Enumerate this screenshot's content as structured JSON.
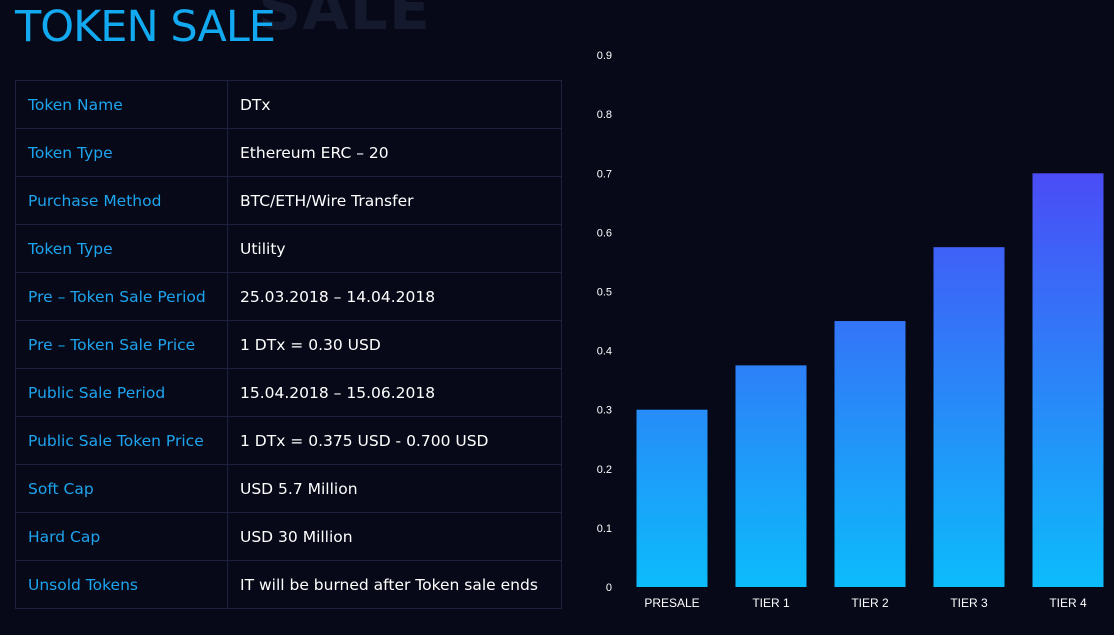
{
  "page": {
    "title": "TOKEN SALE",
    "background_word": "SALE"
  },
  "table": {
    "rows": [
      {
        "label": "Token Name",
        "value": "DTx"
      },
      {
        "label": "Token Type",
        "value": "Ethereum ERC – 20"
      },
      {
        "label": "Purchase Method",
        "value": "BTC/ETH/Wire Transfer"
      },
      {
        "label": "Token Type",
        "value": "Utility"
      },
      {
        "label": "Pre – Token Sale Period",
        "value": "25.03.2018 – 14.04.2018"
      },
      {
        "label": "Pre – Token Sale Price",
        "value": "1 DTx = 0.30 USD"
      },
      {
        "label": "Public Sale Period",
        "value": "15.04.2018 – 15.06.2018"
      },
      {
        "label": "Public Sale Token Price",
        "value": "1 DTx = 0.375 USD - 0.700 USD"
      },
      {
        "label": "Soft Cap",
        "value": "USD 5.7 Million"
      },
      {
        "label": "Hard Cap",
        "value": "USD 30 Million"
      },
      {
        "label": "Unsold Tokens",
        "value": "IT will be burned after Token sale ends"
      }
    ]
  },
  "chart_data": {
    "type": "bar",
    "title": "",
    "xlabel": "",
    "ylabel": "",
    "categories": [
      "PRESALE",
      "TIER 1",
      "TIER 2",
      "TIER 3",
      "TIER 4"
    ],
    "values": [
      0.3,
      0.375,
      0.45,
      0.575,
      0.7
    ],
    "ylim": [
      0,
      1
    ],
    "yticks": [
      "0",
      "0.1",
      "0.2",
      "0.3",
      "0.4",
      "0.5",
      "0.6",
      "0.7",
      "0.8",
      "0.9",
      "1.0"
    ],
    "grid": false,
    "legend": "none",
    "colors": {
      "bar_top": "#4a4cf6",
      "bar_bottom": "#0cbcfb",
      "text": "#ffffff"
    }
  },
  "colors": {
    "background": "#070918",
    "accent": "#13a9f0",
    "label_text": "#1ea4ee",
    "border": "#1d2140"
  }
}
